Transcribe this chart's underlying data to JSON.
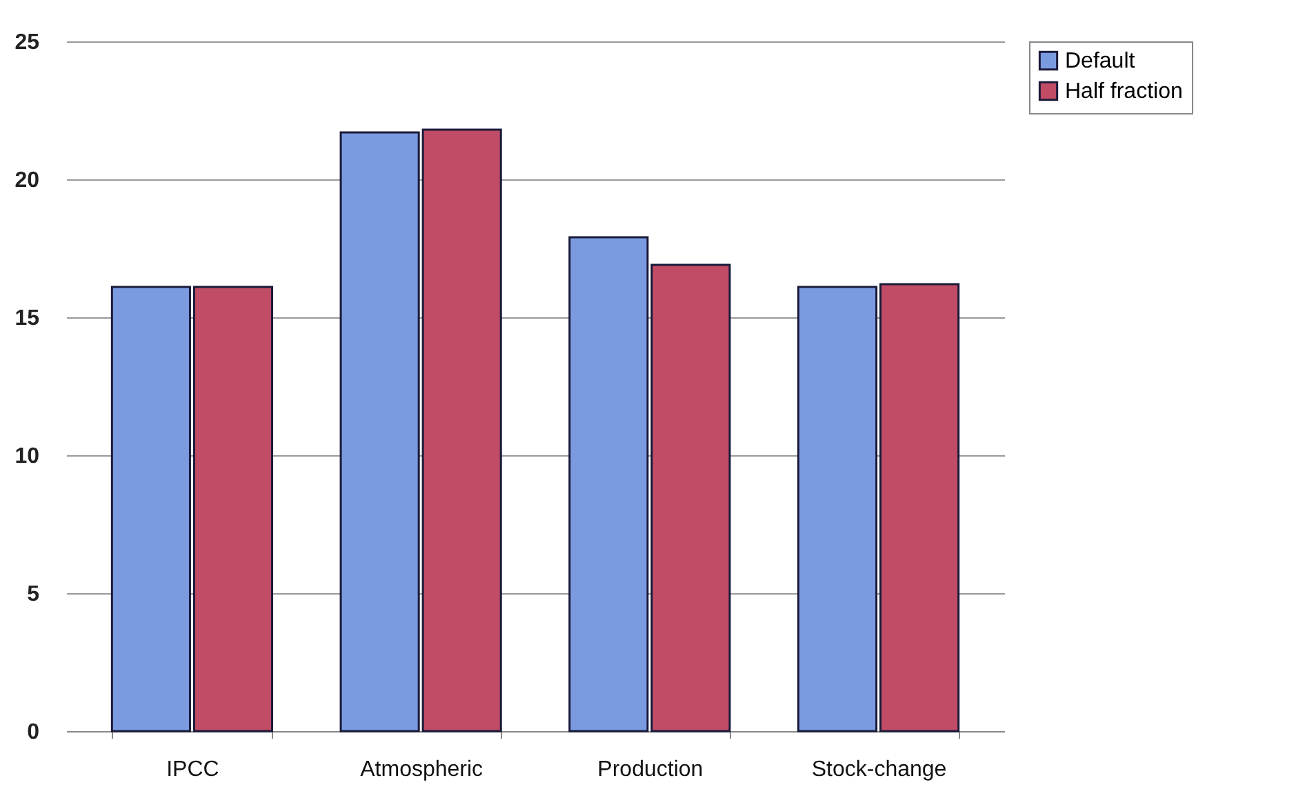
{
  "chart_data": {
    "type": "bar",
    "categories": [
      "IPCC",
      "Atmospheric",
      "Production",
      "Stock-change"
    ],
    "series": [
      {
        "name": "Default",
        "color": "#7b9be0",
        "values": [
          16.1,
          21.7,
          17.9,
          16.1
        ]
      },
      {
        "name": "Half fraction",
        "color": "#c04c65",
        "values": [
          16.1,
          21.8,
          16.9,
          16.2
        ]
      }
    ],
    "ylim": [
      0,
      25
    ],
    "yticks": [
      0,
      5,
      10,
      15,
      20,
      25
    ],
    "grid": "y",
    "legend": "right"
  }
}
